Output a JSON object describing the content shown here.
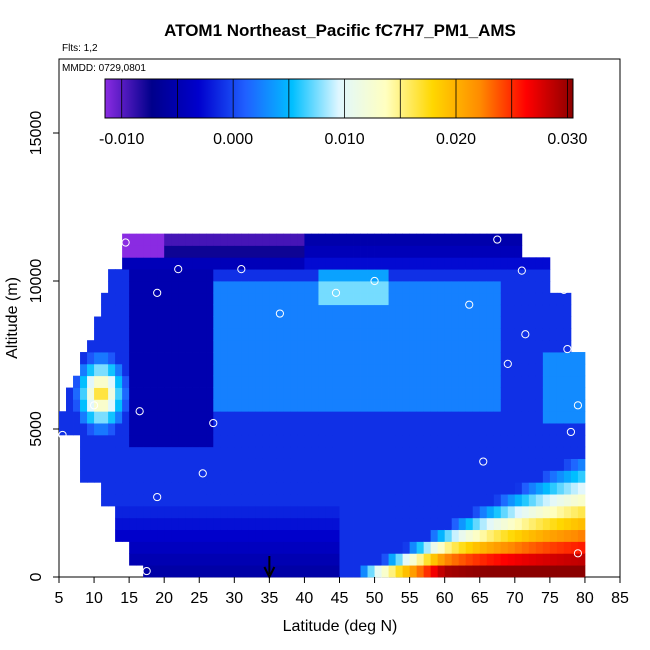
{
  "chart_data": {
    "type": "heatmap",
    "title": "ATOM1 Northeast_Pacific fC7H7_PM1_AMS",
    "annotations": [
      "Flts: 1,2",
      "MMDD: 0729,0801"
    ],
    "xlabel": "Latitude (deg N)",
    "ylabel": "Altitude (m)",
    "xlim": [
      5,
      85
    ],
    "ylim": [
      0,
      17500
    ],
    "xticks": [
      "5",
      "10",
      "15",
      "20",
      "25",
      "30",
      "35",
      "40",
      "45",
      "50",
      "55",
      "60",
      "65",
      "70",
      "75",
      "80",
      "85"
    ],
    "yticks": [
      "0",
      "5000",
      "10000",
      "15000"
    ],
    "colorbar": {
      "range": [
        -0.0115,
        0.0305
      ],
      "ticks": [
        "-0.010",
        "0.000",
        "0.010",
        "0.020",
        "0.030"
      ],
      "tick_values": [
        -0.01,
        0.0,
        0.01,
        0.02,
        0.03
      ],
      "colors": [
        "#8a2be2",
        "#00008b",
        "#0000cd",
        "#2060ff",
        "#00bfff",
        "#e0f7ff",
        "#ffffc0",
        "#ffd700",
        "#ff8c00",
        "#ff0000",
        "#8b0000"
      ]
    },
    "arrow_marker": {
      "latitude": 35
    },
    "profile_points": [
      [
        14.5,
        11300
      ],
      [
        67.5,
        11400
      ],
      [
        22,
        10400
      ],
      [
        31,
        10400
      ],
      [
        71,
        10350
      ],
      [
        50,
        10000
      ],
      [
        77,
        9700
      ],
      [
        19,
        9600
      ],
      [
        44.5,
        9600
      ],
      [
        63.5,
        9200
      ],
      [
        36.5,
        8900
      ],
      [
        71.5,
        8200
      ],
      [
        77.5,
        7700
      ],
      [
        69,
        7200
      ],
      [
        10,
        5800
      ],
      [
        16.5,
        5600
      ],
      [
        79,
        5800
      ],
      [
        27,
        5200
      ],
      [
        5.5,
        4800
      ],
      [
        78,
        4900
      ],
      [
        65.5,
        3900
      ],
      [
        25.5,
        3500
      ],
      [
        19,
        2700
      ],
      [
        79,
        800
      ],
      [
        17.5,
        200
      ]
    ]
  }
}
